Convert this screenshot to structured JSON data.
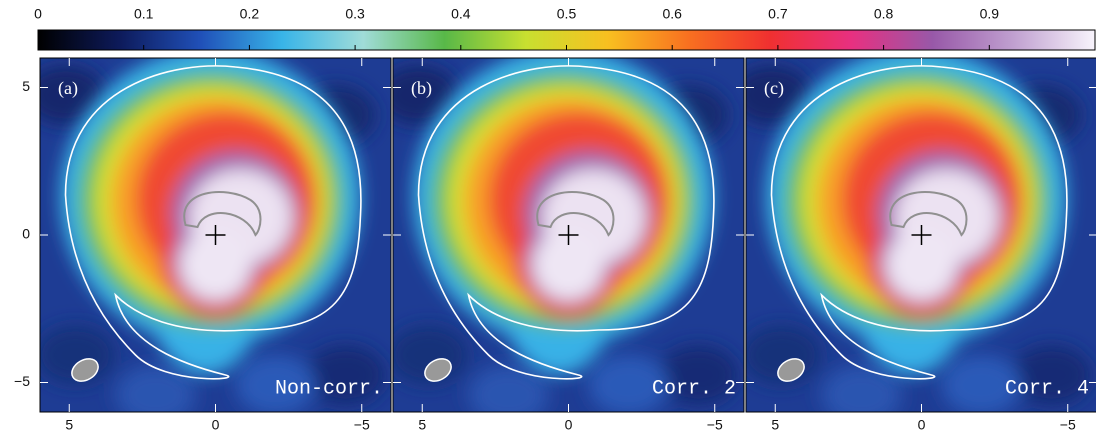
{
  "chart_data": {
    "type": "image",
    "colorbar": {
      "lim": [
        0,
        1
      ],
      "ticks": [
        0,
        0.1,
        0.2,
        0.3,
        0.4,
        0.5,
        0.6,
        0.7,
        0.8,
        0.9
      ],
      "colormap": [
        "#000000",
        "#0d1a5a",
        "#2050b8",
        "#38b4e8",
        "#a0dcd8",
        "#58b848",
        "#c8e030",
        "#f8c020",
        "#f87020",
        "#f03030",
        "#e83080",
        "#9858a8",
        "#c0a0d0",
        "#f8f4fc"
      ]
    },
    "xlim": [
      6,
      -6
    ],
    "ylim": [
      -6,
      6
    ],
    "xticks": [
      5,
      0,
      {
        "value": -5,
        "label": "−5"
      }
    ],
    "yticks": [
      5,
      0,
      {
        "value": -5,
        "label": "−5"
      }
    ],
    "panels": [
      {
        "label": "(a)",
        "annotation": "Non-corr."
      },
      {
        "label": "(b)",
        "annotation": "Corr. 2"
      },
      {
        "label": "(c)",
        "annotation": "Corr. 4"
      }
    ]
  }
}
